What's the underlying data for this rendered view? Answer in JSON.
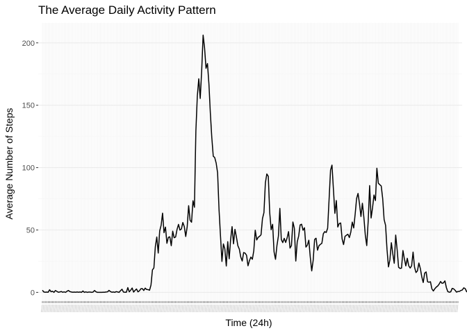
{
  "chart_data": {
    "type": "line",
    "title": "The Average Daily Activity Pattern",
    "xlabel": "Time (24h)",
    "ylabel": "Average Number of Steps",
    "ylim": [
      -7,
      216
    ],
    "yticks": [
      0,
      50,
      100,
      150,
      200
    ],
    "x_interval_count": 288,
    "x_tick_labels_legible": false,
    "grid": true,
    "line_color": "#000000",
    "panel_color": "#ffffff",
    "grid_color": "#ebebeb",
    "series": [
      {
        "values": [
          1.7,
          0.3,
          0.1,
          0.2,
          0.1,
          2.1,
          0.5,
          0.9,
          0,
          1.5,
          0.8,
          0.1,
          0.3,
          0.7,
          0.1,
          0.4,
          0,
          0.9,
          1.5,
          0.6,
          0.3,
          0.1,
          0.2,
          0.1,
          0.3,
          0.1,
          0.3,
          0,
          1.1,
          0,
          0.4,
          0,
          0.2,
          0.2,
          0,
          0.2,
          1.5,
          0.5,
          0,
          0,
          0,
          0,
          0.1,
          0.1,
          0.3,
          0.4,
          1.6,
          0.6,
          0.1,
          0.3,
          0,
          0.6,
          0.3,
          0,
          1.4,
          2.5,
          0.2,
          0.1,
          0.1,
          3.8,
          0.4,
          1.8,
          3.5,
          0.2,
          1.6,
          2.7,
          0.4,
          1.2,
          2.9,
          3,
          1.5,
          3.4,
          2.3,
          2.2,
          1.7,
          5.8,
          18,
          19.6,
          36.6,
          44.4,
          31.5,
          49.2,
          53.8,
          63.5,
          47.8,
          52.3,
          39.3,
          44.1,
          44.5,
          37.4,
          49,
          43.8,
          44.4,
          50.5,
          54.5,
          49.9,
          50.8,
          56,
          52.7,
          44.8,
          52.5,
          69.5,
          57.8,
          56.2,
          73.4,
          68.2,
          129.4,
          157.5,
          171.2,
          155.4,
          177.3,
          206.2,
          195.9,
          179.6,
          183.4,
          167.2,
          143.5,
          124,
          109.1,
          108.1,
          103.7,
          95.9,
          66.2,
          45.2,
          24.8,
          38.8,
          34.9,
          21.1,
          40.6,
          26.9,
          42.4,
          52.7,
          38.9,
          50.5,
          44.3,
          37.4,
          34.7,
          28.3,
          25.1,
          31.9,
          31.4,
          29.7,
          21.3,
          25.5,
          28.3,
          26.5,
          33.4,
          49.8,
          42,
          44.1,
          44.9,
          46.2,
          59.2,
          63.9,
          87.9,
          94.9,
          93,
          63.9,
          50.2,
          54.5,
          32.4,
          26.5,
          37.7,
          45.1,
          67.3,
          42.3,
          39.9,
          43.3,
          40,
          43.6,
          48.7,
          35.5,
          37.5,
          56.4,
          51.4,
          25.1,
          40.6,
          45.2,
          54.1,
          54.6,
          49.8,
          51.8,
          36.3,
          37.9,
          41.8,
          28.3,
          17.2,
          25.6,
          42.4,
          43.4,
          33.8,
          37.4,
          38.5,
          39.3,
          46.9,
          48.7,
          48,
          51.4,
          74.7,
          98,
          102,
          82.4,
          63.3,
          73.6,
          52.4,
          55.2,
          55.6,
          42.8,
          38.3,
          44.9,
          45.8,
          46.6,
          43.9,
          48.3,
          56.3,
          51.6,
          62.6,
          75.3,
          79.3,
          71,
          60.8,
          71.4,
          60.3,
          46,
          37.5,
          57.1,
          85.6,
          59.6,
          67.8,
          78,
          73.6,
          99.5,
          87.5,
          86.3,
          85.3,
          75.3,
          58.3,
          53.8,
          34.3,
          20.4,
          26.1,
          39.8,
          30.8,
          23.3,
          45.9,
          34.2,
          20.1,
          19.2,
          19.4,
          33.5,
          26.8,
          21.2,
          27.3,
          21.3,
          19.5,
          21.3,
          32.3,
          20.2,
          15.9,
          17.2,
          23.5,
          19.2,
          12.5,
          7.9,
          15.4,
          16.4,
          8.5,
          8.1,
          8.5,
          2.8,
          1.1,
          2.9,
          4.2,
          5.1,
          6.6,
          8.7,
          7.2,
          7.6,
          9.2,
          3.8,
          0.6,
          0.1,
          0.4,
          3.2,
          2.8,
          1.7,
          0.2,
          0.7,
          0.8,
          1.5,
          1.9,
          3.6,
          3,
          0.5,
          0.3,
          0.9,
          1
        ]
      }
    ]
  }
}
